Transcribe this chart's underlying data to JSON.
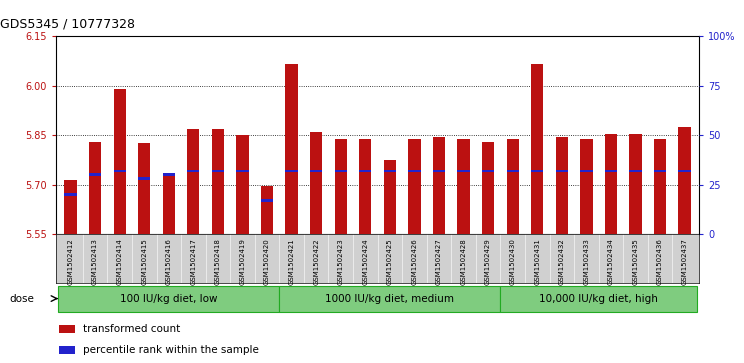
{
  "title": "GDS5345 / 10777328",
  "samples": [
    "GSM1502412",
    "GSM1502413",
    "GSM1502414",
    "GSM1502415",
    "GSM1502416",
    "GSM1502417",
    "GSM1502418",
    "GSM1502419",
    "GSM1502420",
    "GSM1502421",
    "GSM1502422",
    "GSM1502423",
    "GSM1502424",
    "GSM1502425",
    "GSM1502426",
    "GSM1502427",
    "GSM1502428",
    "GSM1502429",
    "GSM1502430",
    "GSM1502431",
    "GSM1502432",
    "GSM1502433",
    "GSM1502434",
    "GSM1502435",
    "GSM1502436",
    "GSM1502437"
  ],
  "transformed_count": [
    5.715,
    5.83,
    5.99,
    5.825,
    5.725,
    5.87,
    5.87,
    5.85,
    5.695,
    6.065,
    5.86,
    5.84,
    5.84,
    5.775,
    5.84,
    5.845,
    5.84,
    5.83,
    5.84,
    6.065,
    5.845,
    5.84,
    5.855,
    5.855,
    5.84,
    5.875
  ],
  "percentile_rank": [
    20,
    30,
    32,
    28,
    30,
    32,
    32,
    32,
    17,
    32,
    32,
    32,
    32,
    32,
    32,
    32,
    32,
    32,
    32,
    32,
    32,
    32,
    32,
    32,
    32,
    32
  ],
  "ymin": 5.55,
  "ymax": 6.15,
  "yticks_left": [
    5.55,
    5.7,
    5.85,
    6.0,
    6.15
  ],
  "yticks_right": [
    0,
    25,
    50,
    75,
    100
  ],
  "bar_color": "#BB1111",
  "blue_color": "#2222CC",
  "groups": [
    {
      "label": "100 IU/kg diet, low",
      "start": 0,
      "end": 9
    },
    {
      "label": "1000 IU/kg diet, medium",
      "start": 9,
      "end": 18
    },
    {
      "label": "10,000 IU/kg diet, high",
      "start": 18,
      "end": 26
    }
  ],
  "group_fill": "#7FCC7F",
  "group_border": "#22AA22",
  "xlabelbg": "#D0D0D0",
  "legend_items": [
    {
      "label": "transformed count",
      "color": "#BB1111"
    },
    {
      "label": "percentile rank within the sample",
      "color": "#2222CC"
    }
  ],
  "dose_label": "dose"
}
